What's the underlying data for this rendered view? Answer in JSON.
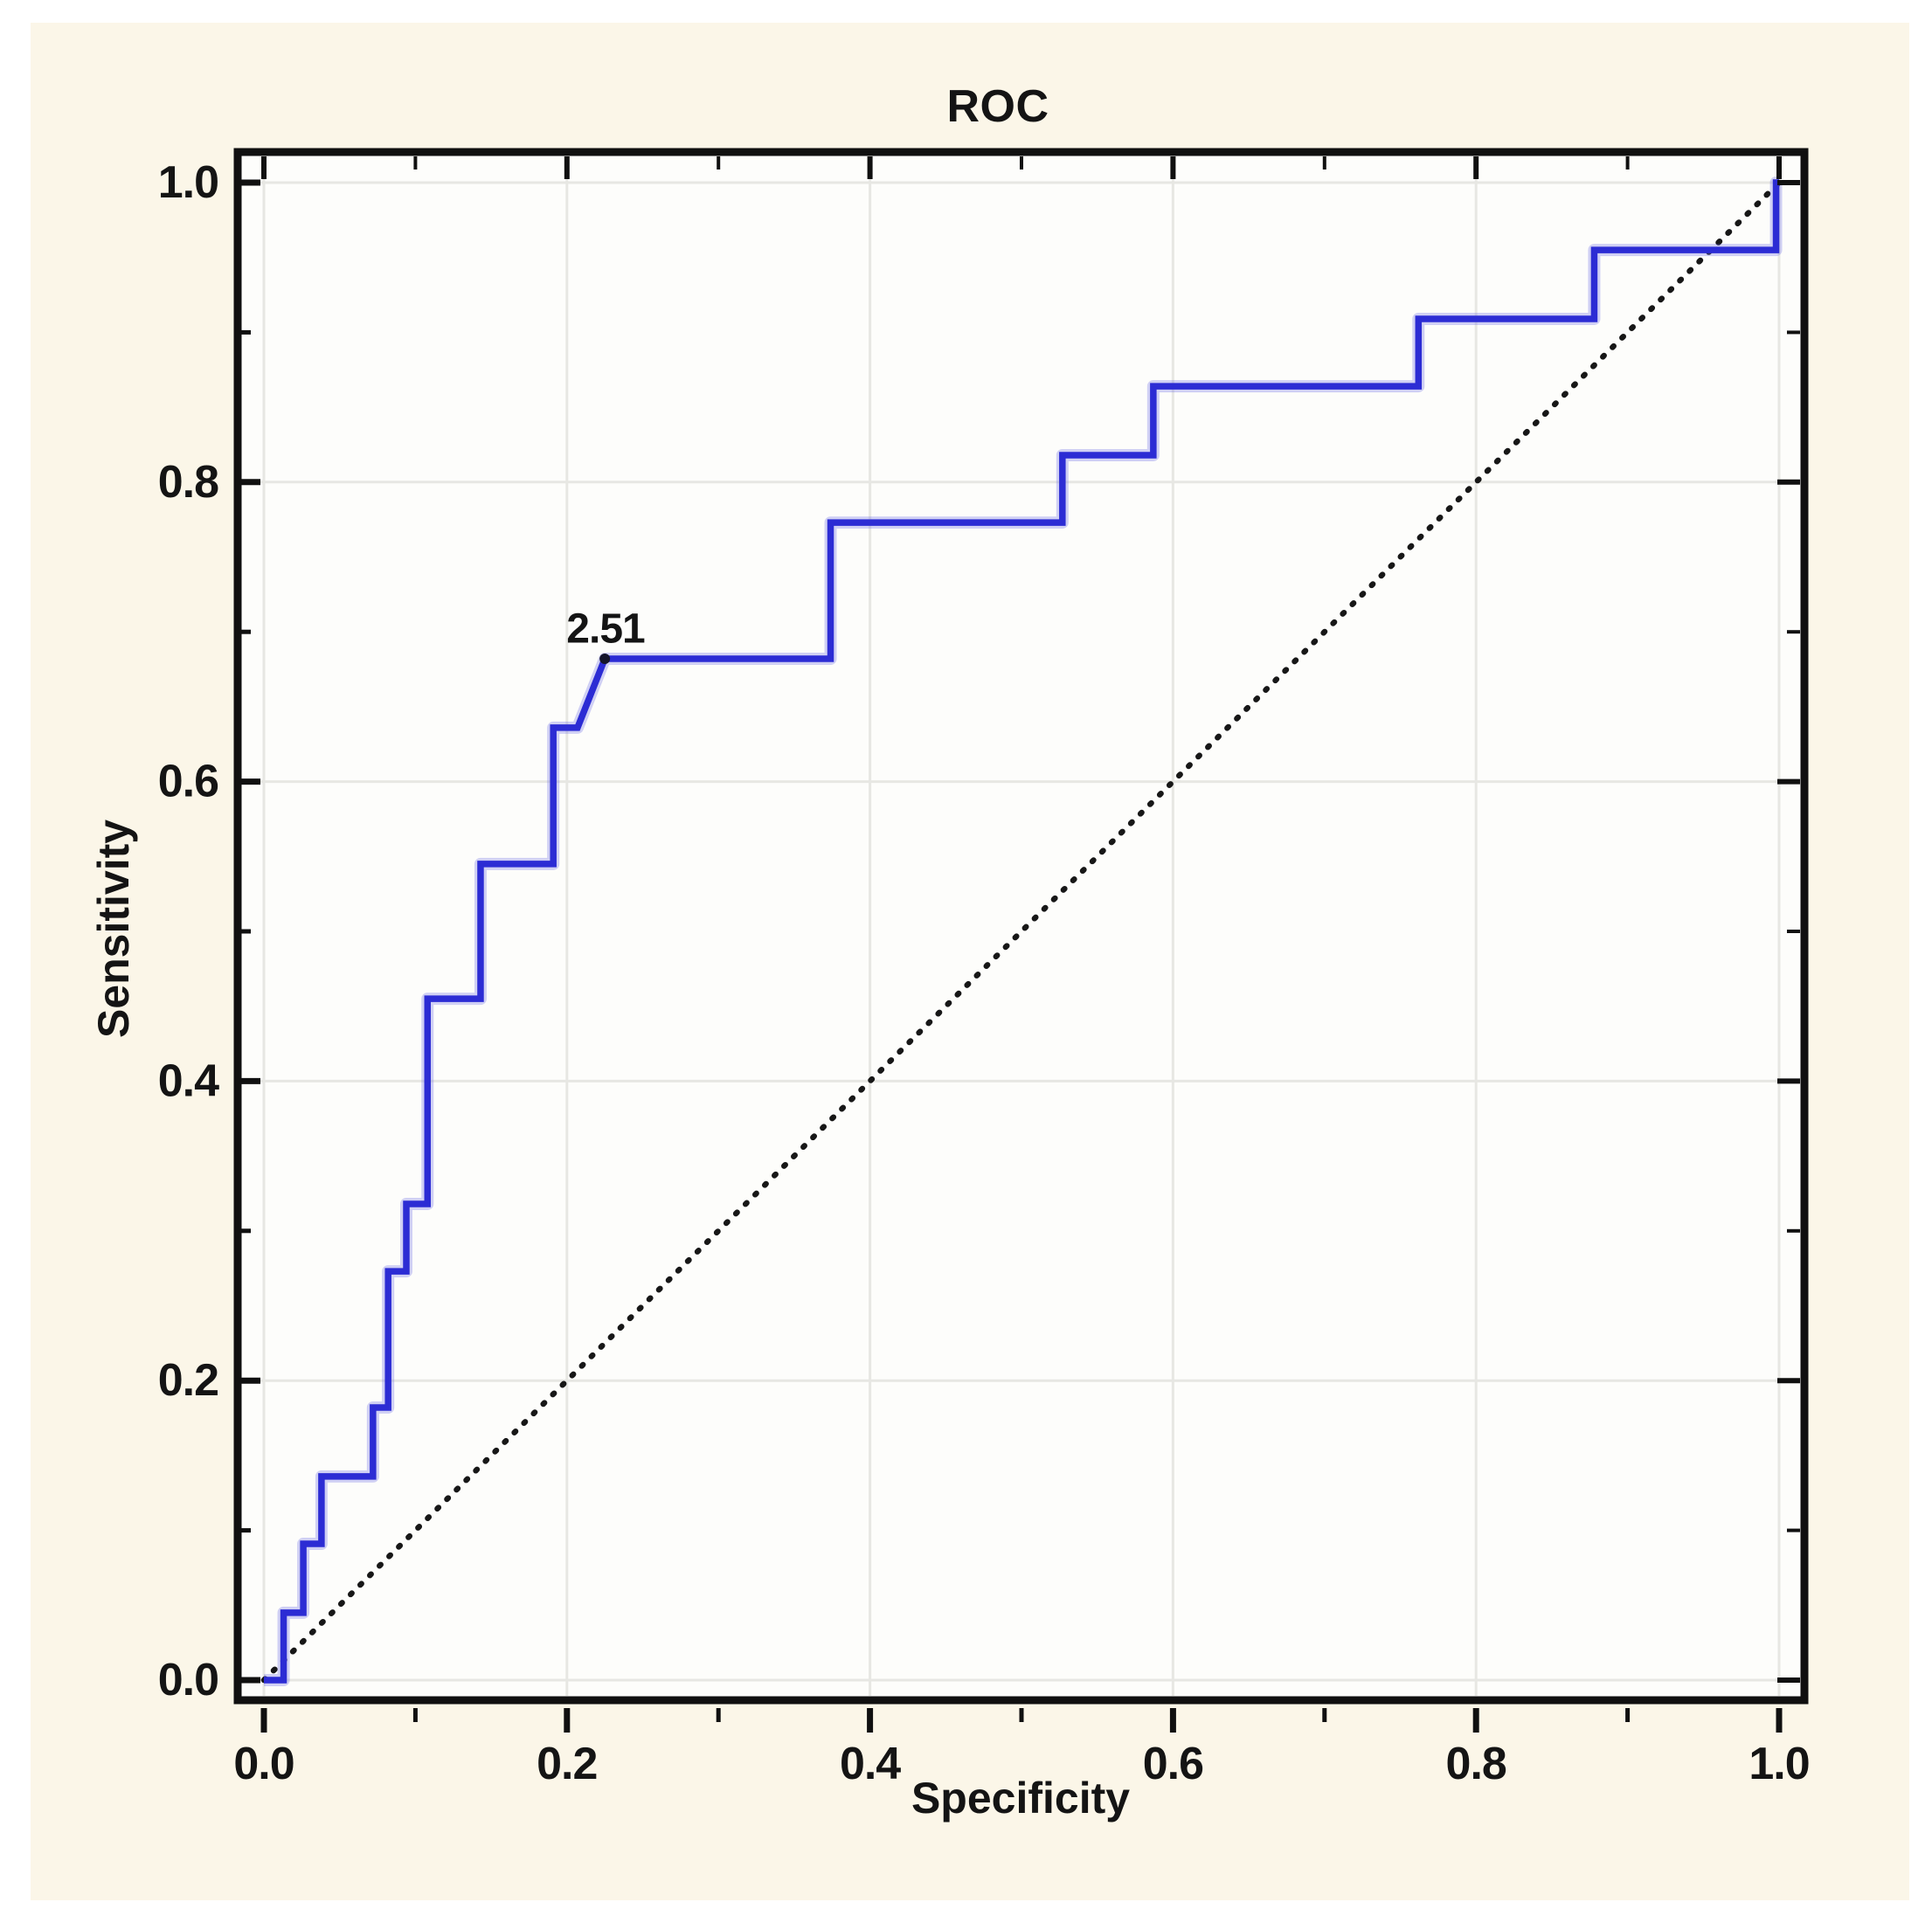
{
  "colors": {
    "page_background": "#ffffff",
    "card_background": "#fbf6e8",
    "plot_background": "#fdfdfb",
    "grid": "#e7e7e3",
    "frame": "#101010",
    "curve": "#2c2cd4",
    "curve_halo": "rgba(105,105,228,0.30)",
    "diagonal": "#171717",
    "cutoff_marker": "#15152a",
    "text": "#141414"
  },
  "chart_data": {
    "type": "line",
    "title": "ROC",
    "xlabel": "Specificity",
    "ylabel": "Sensitivity",
    "xlim": [
      0,
      1
    ],
    "ylim": [
      0,
      1
    ],
    "grid": true,
    "legend": "none",
    "x_ticks": [
      0.0,
      0.2,
      0.4,
      0.6,
      0.8,
      1.0
    ],
    "x_tick_labels": [
      "0.0",
      "0.2",
      "0.4",
      "0.6",
      "0.8",
      "1.0"
    ],
    "y_ticks": [
      0.0,
      0.2,
      0.4,
      0.6,
      0.8,
      1.0
    ],
    "y_tick_labels": [
      "0.0",
      "0.2",
      "0.4",
      "0.6",
      "0.8",
      "1.0"
    ],
    "minor_ticks": [
      0.1,
      0.3,
      0.5,
      0.7,
      0.9
    ],
    "series": [
      {
        "name": "ROC curve",
        "type": "step",
        "color": "#2c2cd4",
        "points": [
          [
            0.0,
            0.0
          ],
          [
            0.013,
            0.0
          ],
          [
            0.013,
            0.045
          ],
          [
            0.026,
            0.045
          ],
          [
            0.026,
            0.091
          ],
          [
            0.038,
            0.091
          ],
          [
            0.038,
            0.136
          ],
          [
            0.072,
            0.136
          ],
          [
            0.072,
            0.182
          ],
          [
            0.082,
            0.182
          ],
          [
            0.082,
            0.273
          ],
          [
            0.094,
            0.273
          ],
          [
            0.094,
            0.318
          ],
          [
            0.108,
            0.318
          ],
          [
            0.108,
            0.455
          ],
          [
            0.143,
            0.455
          ],
          [
            0.143,
            0.545
          ],
          [
            0.191,
            0.545
          ],
          [
            0.191,
            0.636
          ],
          [
            0.207,
            0.636
          ],
          [
            0.225,
            0.682
          ],
          [
            0.374,
            0.682
          ],
          [
            0.374,
            0.773
          ],
          [
            0.527,
            0.773
          ],
          [
            0.527,
            0.818
          ],
          [
            0.587,
            0.818
          ],
          [
            0.587,
            0.864
          ],
          [
            0.762,
            0.864
          ],
          [
            0.762,
            0.909
          ],
          [
            0.878,
            0.909
          ],
          [
            0.878,
            0.955
          ],
          [
            0.998,
            0.955
          ],
          [
            0.998,
            1.0
          ],
          [
            1.0,
            1.0
          ]
        ]
      },
      {
        "name": "chance diagonal",
        "type": "line",
        "style": "dotted",
        "color": "#171717",
        "points": [
          [
            0,
            0
          ],
          [
            1,
            1
          ]
        ]
      }
    ],
    "annotations": [
      {
        "label": "2.51",
        "x": 0.225,
        "y": 0.682
      }
    ]
  }
}
